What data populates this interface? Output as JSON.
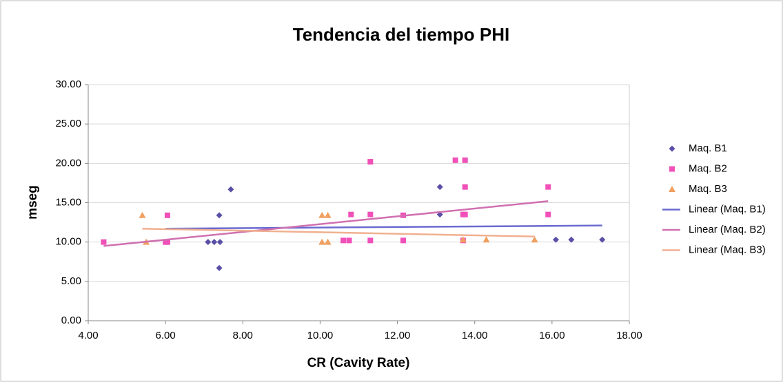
{
  "chart_data": {
    "type": "scatter",
    "title": "Tendencia del tiempo PHI",
    "xlabel": "CR (Cavity Rate)",
    "ylabel": "mseg",
    "xlim": [
      4,
      18
    ],
    "ylim": [
      0,
      30
    ],
    "xticks": [
      {
        "value": 4,
        "label": "4.00"
      },
      {
        "value": 6,
        "label": "6.00"
      },
      {
        "value": 8,
        "label": "8.00"
      },
      {
        "value": 10,
        "label": "10.00"
      },
      {
        "value": 12,
        "label": "12.00"
      },
      {
        "value": 14,
        "label": "14.00"
      },
      {
        "value": 16,
        "label": "16.00"
      },
      {
        "value": 18,
        "label": "18.00"
      }
    ],
    "yticks": [
      {
        "value": 0,
        "label": "0.00"
      },
      {
        "value": 5,
        "label": "5.00"
      },
      {
        "value": 10,
        "label": "10.00"
      },
      {
        "value": 15,
        "label": "15.00"
      },
      {
        "value": 20,
        "label": "20.00"
      },
      {
        "value": 25,
        "label": "25.00"
      },
      {
        "value": 30,
        "label": "30.00"
      }
    ],
    "grid": true,
    "legend": "right",
    "series": [
      {
        "name": "Maq. B1",
        "color": "#5a4fa6",
        "marker": "diamond",
        "x": [
          7.1,
          7.26,
          7.41,
          7.39,
          7.39,
          7.69,
          13.1,
          13.1,
          16.1,
          16.5,
          17.3
        ],
        "values": [
          10,
          10,
          10,
          6.7,
          13.4,
          16.7,
          17,
          13.5,
          10.3,
          10.3,
          10.3
        ]
      },
      {
        "name": "Maq. B2",
        "color": "#f050b8",
        "marker": "square",
        "x": [
          4.4,
          6.0,
          6.05,
          6.05,
          10.6,
          10.75,
          10.8,
          11.3,
          11.3,
          11.3,
          12.15,
          12.15,
          13.5,
          13.75,
          13.75,
          13.7,
          13.75,
          13.7,
          15.9,
          15.9
        ],
        "values": [
          10,
          10,
          10,
          13.4,
          10.2,
          10.2,
          13.5,
          20.2,
          13.5,
          10.2,
          13.4,
          10.2,
          20.4,
          20.4,
          17,
          13.5,
          13.5,
          10.2,
          17,
          13.5
        ]
      },
      {
        "name": "Maq. B3",
        "color": "#f0a060",
        "marker": "triangle",
        "x": [
          5.4,
          5.5,
          10.05,
          10.2,
          10.05,
          10.2,
          13.7,
          14.3,
          15.55
        ],
        "values": [
          13.4,
          10,
          13.4,
          13.4,
          10,
          10,
          10.3,
          10.3,
          10.3
        ]
      },
      {
        "name": "Linear (Maq. B1)",
        "color": "#6a6ad0",
        "marker": "line",
        "x": [
          6.0,
          17.3
        ],
        "values": [
          11.7,
          12.1
        ]
      },
      {
        "name": "Linear (Maq. B2)",
        "color": "#d070b0",
        "marker": "line",
        "x": [
          4.4,
          15.9
        ],
        "values": [
          9.5,
          15.2
        ]
      },
      {
        "name": "Linear (Maq. B3)",
        "color": "#f0b090",
        "marker": "line",
        "x": [
          5.4,
          15.55
        ],
        "values": [
          11.7,
          10.7
        ]
      }
    ]
  }
}
